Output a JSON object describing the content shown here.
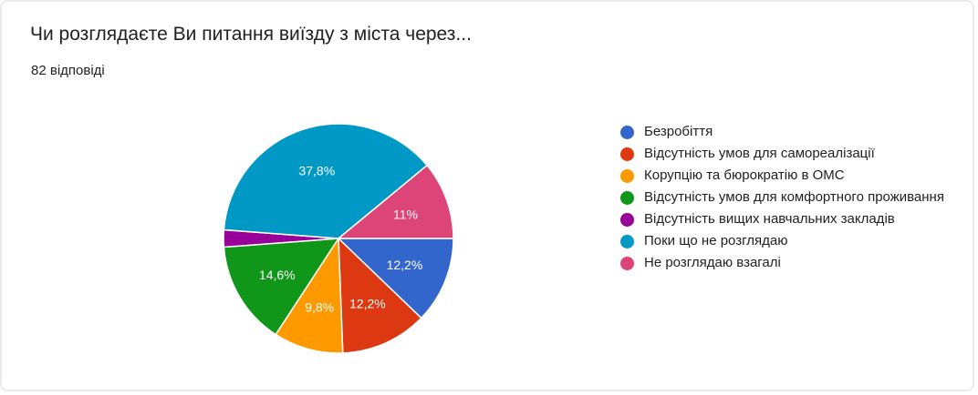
{
  "title": "Чи розглядаєте Ви питання виїзду з міста через...",
  "response_count": "82 відповіді",
  "chart_data": {
    "type": "pie",
    "start_angle_deg": 90,
    "direction": "clockwise",
    "slices": [
      {
        "name": "Безробіття",
        "value": 12.2,
        "label": "12,2%",
        "color": "#3366cc"
      },
      {
        "name": "Відсутність умов для самореалізації",
        "value": 12.2,
        "label": "12,2%",
        "color": "#dc3912"
      },
      {
        "name": "Корупцію та бюрократію в ОМС",
        "value": 9.8,
        "label": "9,8%",
        "color": "#ff9900"
      },
      {
        "name": "Відсутність умов для комфортного проживання",
        "value": 14.6,
        "label": "14,6%",
        "color": "#109618"
      },
      {
        "name": "Відсутність вищих навчальних закладів",
        "value": 2.4,
        "label": "",
        "color": "#990099"
      },
      {
        "name": "Поки що не розглядаю",
        "value": 37.8,
        "label": "37,8%",
        "color": "#0099c6"
      },
      {
        "name": "Не розглядаю взагалі",
        "value": 11.0,
        "label": "11%",
        "color": "#dd4477"
      }
    ],
    "legend_position": "right"
  }
}
